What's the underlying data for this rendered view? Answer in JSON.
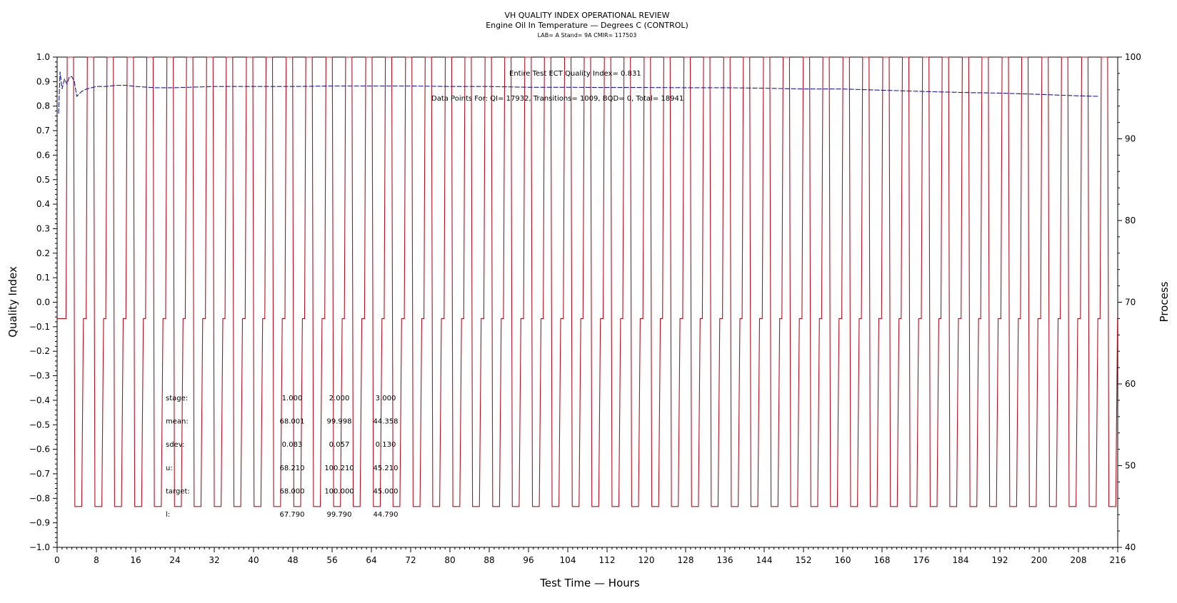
{
  "chart_data": {
    "type": "line",
    "title": "VH QUALITY INDEX OPERATIONAL REVIEW",
    "subtitle": "Engine Oil In Temperature — Degrees C (CONTROL)",
    "subtitle2": "LAB= A Stand= 9A CMIR= 117503",
    "xlabel": "Test Time — Hours",
    "ylabel": "Quality Index",
    "y2label": "Process",
    "xlim": [
      0,
      216
    ],
    "ylim": [
      -1.0,
      1.0
    ],
    "y2lim": [
      40,
      100
    ],
    "x_ticks": [
      "0",
      "8",
      "16",
      "24",
      "32",
      "40",
      "48",
      "56",
      "64",
      "72",
      "80",
      "88",
      "96",
      "104",
      "112",
      "120",
      "128",
      "136",
      "144",
      "152",
      "160",
      "168",
      "176",
      "184",
      "192",
      "200",
      "208",
      "216"
    ],
    "y_ticks": [
      "1.0",
      "0.9",
      "0.8",
      "0.7",
      "0.6",
      "0.5",
      "0.4",
      "0.3",
      "0.2",
      "0.1",
      "0.0",
      "−0.1",
      "−0.2",
      "−0.3",
      "−0.4",
      "−0.5",
      "−0.6",
      "−0.7",
      "−0.8",
      "−0.9",
      "−1.0"
    ],
    "y2_ticks": [
      "100",
      "90",
      "80",
      "70",
      "60",
      "50",
      "40"
    ],
    "series": [
      {
        "role": "quality_index",
        "axis": "left",
        "color": "#1a1aa6",
        "style": "dashed",
        "x": [
          0.3,
          0.6,
          1,
          1.5,
          2,
          2.5,
          3,
          3.5,
          4,
          5,
          6,
          8,
          10,
          12,
          14,
          16,
          20,
          24,
          32,
          40,
          48,
          56,
          64,
          72,
          80,
          88,
          96,
          104,
          112,
          120,
          128,
          136,
          144,
          152,
          160,
          168,
          176,
          184,
          192,
          200,
          208,
          212
        ],
        "values": [
          0.77,
          0.94,
          0.87,
          0.91,
          0.89,
          0.92,
          0.92,
          0.9,
          0.84,
          0.86,
          0.87,
          0.88,
          0.88,
          0.885,
          0.885,
          0.88,
          0.875,
          0.875,
          0.88,
          0.88,
          0.88,
          0.882,
          0.882,
          0.882,
          0.88,
          0.88,
          0.877,
          0.877,
          0.876,
          0.876,
          0.875,
          0.875,
          0.873,
          0.87,
          0.87,
          0.865,
          0.86,
          0.856,
          0.853,
          0.848,
          0.842,
          0.84
        ]
      },
      {
        "role": "process_temperature",
        "axis": "right",
        "color": "#b01020",
        "stage_levels": [
          68.0,
          100.0,
          45.0
        ],
        "cycle_starts": [
          1.8,
          5.9,
          9.9,
          14.0,
          18.0,
          22.1,
          26.1,
          30.2,
          34.2,
          38.3,
          42.3,
          46.4,
          50.4,
          54.5,
          58.5,
          62.6,
          66.6,
          70.7,
          74.7,
          78.8,
          82.8,
          86.9,
          90.9,
          95.0,
          99.0,
          103.1,
          107.1,
          111.2,
          115.2,
          119.3,
          123.3,
          127.4,
          131.4,
          135.5,
          139.5,
          143.6,
          147.6,
          151.7,
          155.7,
          159.8,
          163.8,
          167.9,
          171.9,
          176.0,
          180.0,
          184.1,
          188.1,
          192.2,
          196.2,
          200.3,
          204.3,
          208.4,
          212.4
        ],
        "cycle_pattern": {
          "high_hours": 1.3,
          "low_hours": 1.4,
          "total_hours": 4.05
        }
      }
    ],
    "annotations": {
      "qi_text": "Entire Test ECT Quality Index=   0.831",
      "counts_text": "Data Points For: QI=  17932, Transitions=   1009, BQD=      0, Total=  18941"
    },
    "stats_table": {
      "rows": [
        {
          "label": "stage:",
          "values": [
            "1.000",
            "2.000",
            "3.000"
          ]
        },
        {
          "label": "mean:",
          "values": [
            "68.001",
            "99.998",
            "44.358"
          ]
        },
        {
          "label": "sdev:",
          "values": [
            "0.083",
            "0.057",
            "0.130"
          ]
        },
        {
          "label": "u:",
          "values": [
            "68.210",
            "100.210",
            "45.210"
          ]
        },
        {
          "label": "target:",
          "values": [
            "68.000",
            "100.000",
            "45.000"
          ]
        },
        {
          "label": "l:",
          "values": [
            "67.790",
            "99.790",
            "44.790"
          ]
        }
      ]
    }
  }
}
